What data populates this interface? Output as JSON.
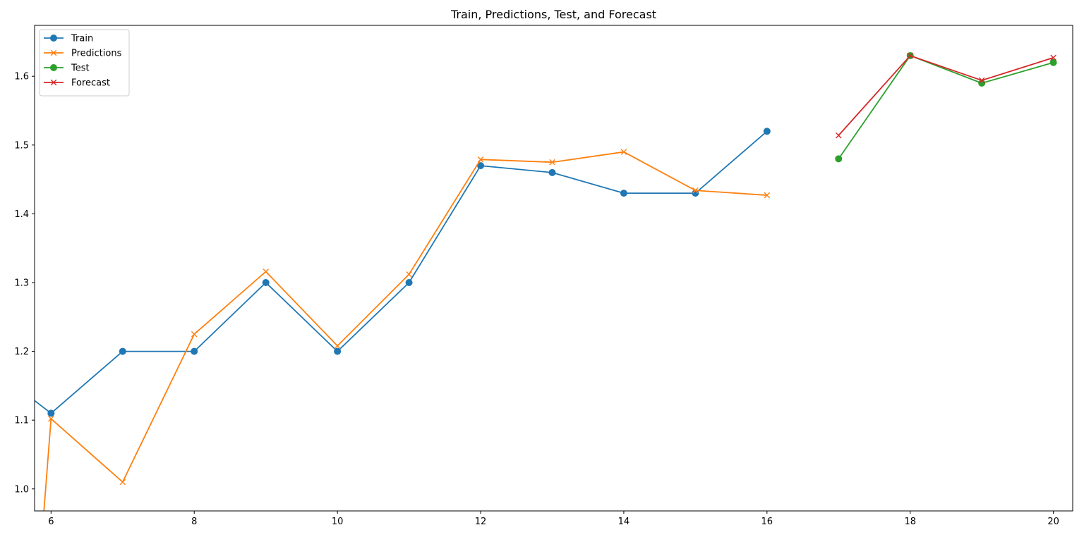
{
  "chart_data": {
    "type": "line",
    "title": "Train, Predictions, Test, and Forecast",
    "xlabel": "",
    "ylabel": "",
    "xlim": [
      5.77,
      20.27
    ],
    "ylim": [
      0.968,
      1.674
    ],
    "x_ticks": [
      6,
      8,
      10,
      12,
      14,
      16,
      18,
      20
    ],
    "y_ticks": [
      1.0,
      1.1,
      1.2,
      1.3,
      1.4,
      1.5,
      1.6
    ],
    "x_tick_labels": [
      "6",
      "8",
      "10",
      "12",
      "14",
      "16",
      "18",
      "20"
    ],
    "y_tick_labels": [
      "1.0",
      "1.1",
      "1.2",
      "1.3",
      "1.4",
      "1.5",
      "1.6"
    ],
    "grid": false,
    "legend_position": "top-left",
    "series": [
      {
        "name": "Train",
        "color": "#1f77b4",
        "marker": "circle",
        "x": [
          5,
          6,
          7,
          8,
          9,
          10,
          11,
          12,
          13,
          14,
          15,
          16
        ],
        "y": [
          1.19,
          1.11,
          1.2,
          1.2,
          1.3,
          1.2,
          1.3,
          1.47,
          1.46,
          1.43,
          1.43,
          1.52
        ]
      },
      {
        "name": "Predictions",
        "color": "#ff7f0e",
        "marker": "x",
        "x": [
          5.85,
          6,
          7,
          8,
          9,
          10,
          11,
          12,
          13,
          14,
          15,
          16
        ],
        "y": [
          0.9,
          1.102,
          1.01,
          1.225,
          1.316,
          1.208,
          1.312,
          1.479,
          1.475,
          1.49,
          1.434,
          1.427
        ]
      },
      {
        "name": "Test",
        "color": "#2ca02c",
        "marker": "circle",
        "x": [
          17,
          18,
          19,
          20
        ],
        "y": [
          1.48,
          1.63,
          1.59,
          1.62
        ]
      },
      {
        "name": "Forecast",
        "color": "#d62728",
        "marker": "x",
        "x": [
          17,
          18,
          19,
          20
        ],
        "y": [
          1.514,
          1.63,
          1.594,
          1.627
        ]
      }
    ]
  }
}
